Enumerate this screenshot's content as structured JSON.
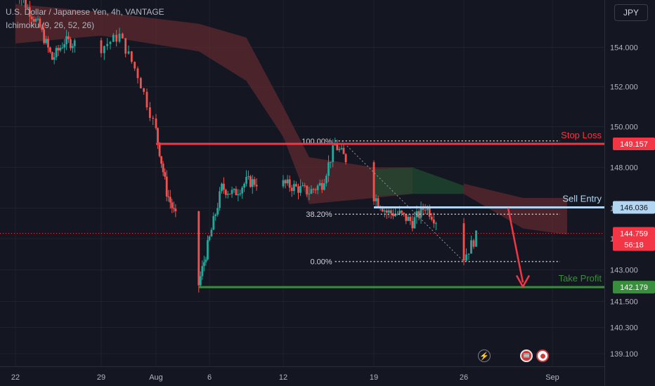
{
  "header": {
    "title": "U.S. Dollar / Japanese Yen, 4h, VANTAGE",
    "indicator": "Ichimoku (9, 26, 52, 26)"
  },
  "currency_button": "JPY",
  "colors": {
    "bull": "#26a69a",
    "bear": "#ef5350",
    "stop_loss": "#f23645",
    "take_profit": "#388e3c",
    "sell_entry": "#b2d6f2",
    "cloud_bear": "#5c2a2e",
    "cloud_bull": "#1f4a30",
    "background": "#141722"
  },
  "events": [
    "flash-icon",
    "us-flag-icon",
    "japan-flag-icon"
  ],
  "chart_data": {
    "type": "candlestick",
    "title": "U.S. Dollar / Japanese Yen, 4h, VANTAGE",
    "ylim": [
      138.8,
      155.9
    ],
    "y_ticks": [
      139.1,
      140.3,
      141.5,
      143.0,
      144.5,
      146.0,
      148.0,
      150.0,
      152.0,
      154.0
    ],
    "y_tick_labels": [
      "139.100",
      "140.300",
      "141.500",
      "143.000",
      "144.500",
      "146.000",
      "148.000",
      "150.000",
      "152.000",
      "154.000"
    ],
    "x_tick_labels": [
      "22",
      "29",
      "Aug",
      "6",
      "12",
      "19",
      "26",
      "Sep"
    ],
    "x_tick_dates": [
      "2024-07-22",
      "2024-07-29",
      "2024-08-01",
      "2024-08-06",
      "2024-08-12",
      "2024-08-19",
      "2024-08-26",
      "2024-09-01"
    ],
    "price_path": [
      [
        "2024-07-22",
        157.0
      ],
      [
        "2024-07-24",
        155.0
      ],
      [
        "2024-07-25",
        153.4
      ],
      [
        "2024-07-26",
        154.3
      ],
      [
        "2024-07-29",
        154.0
      ],
      [
        "2024-07-30",
        154.6
      ],
      [
        "2024-07-31",
        152.6
      ],
      [
        "2024-08-01",
        149.8
      ],
      [
        "2024-08-02",
        146.8
      ],
      [
        "2024-08-05",
        142.3
      ],
      [
        "2024-08-06",
        144.5
      ],
      [
        "2024-08-07",
        147.0
      ],
      [
        "2024-08-08",
        146.7
      ],
      [
        "2024-08-09",
        147.3
      ],
      [
        "2024-08-12",
        147.2
      ],
      [
        "2024-08-13",
        147.0
      ],
      [
        "2024-08-14",
        146.8
      ],
      [
        "2024-08-15",
        147.2
      ],
      [
        "2024-08-16",
        149.1
      ],
      [
        "2024-08-19",
        146.6
      ],
      [
        "2024-08-20",
        145.8
      ],
      [
        "2024-08-21",
        145.7
      ],
      [
        "2024-08-22",
        145.3
      ],
      [
        "2024-08-23",
        146.1
      ],
      [
        "2024-08-26",
        143.6
      ],
      [
        "2024-08-27",
        144.8
      ]
    ],
    "cloud": [
      [
        "2024-07-22",
        156.2,
        154.2
      ],
      [
        "2024-07-29",
        155.8,
        154.6
      ],
      [
        "2024-08-05",
        155.2,
        153.8
      ],
      [
        "2024-08-09",
        154.5,
        152.3
      ],
      [
        "2024-08-12",
        151.0,
        149.5
      ],
      [
        "2024-08-14",
        148.5,
        146.2
      ],
      [
        "2024-08-19",
        148.0,
        146.5
      ],
      [
        "2024-08-22",
        148.0,
        146.7
      ],
      [
        "2024-08-26",
        147.2,
        146.7
      ],
      [
        "2024-08-30",
        146.5,
        145.0
      ],
      [
        "2024-09-02",
        146.5,
        144.7
      ]
    ],
    "last_price": 144.759,
    "countdown": "56:18",
    "levels": [
      {
        "label": "Stop Loss",
        "value": 149.157,
        "price_label": "149.157"
      },
      {
        "label": "Sell Entry",
        "value": 146.036,
        "price_label": "146.036"
      },
      {
        "label": "Take Profit",
        "value": 142.179,
        "price_label": "142.179"
      }
    ],
    "fibonacci": [
      {
        "label": "100.00%",
        "value": 149.3
      },
      {
        "label": "38.20%",
        "value": 145.7
      },
      {
        "label": "0.00%",
        "value": 143.4
      }
    ],
    "projection_arrow": {
      "from": [
        "2024-08-29",
        146.0
      ],
      "to": [
        "2024-08-30",
        142.2
      ]
    }
  }
}
